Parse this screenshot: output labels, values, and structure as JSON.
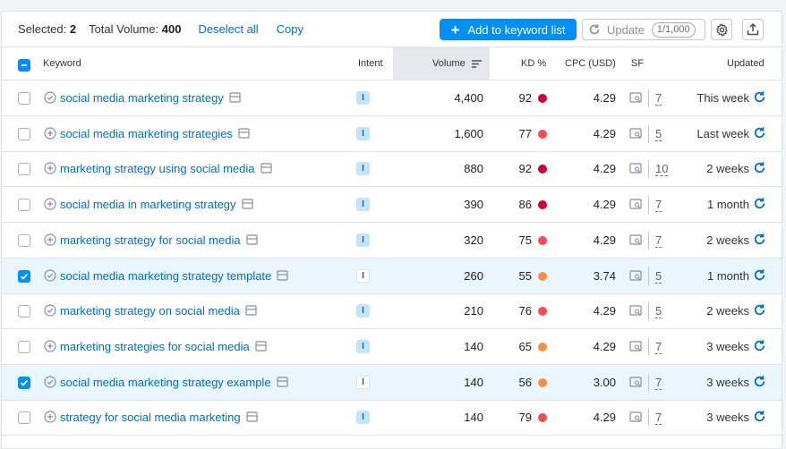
{
  "toolbar": {
    "selected_label": "Selected:",
    "selected_count": "2",
    "total_volume_label": "Total Volume:",
    "total_volume": "400",
    "deselect_label": "Deselect all",
    "copy_label": "Copy",
    "add_label": "Add to keyword list",
    "update_label": "Update",
    "update_quota": "1/1,000",
    "accent_color": "#008ff8"
  },
  "columns": {
    "keyword": "Keyword",
    "intent": "Intent",
    "volume": "Volume",
    "kd": "KD %",
    "cpc": "CPC (USD)",
    "sf": "SF",
    "updated": "Updated"
  },
  "kd_colors": {
    "very_hard": "#d1002f",
    "hard": "#ff4953",
    "difficult": "#ff8c43"
  },
  "rows": [
    {
      "keyword": "social media marketing strategy",
      "intent": "I",
      "volume": "4,400",
      "kd": "92",
      "kd_level": "very_hard",
      "cpc": "4.29",
      "sf": "7",
      "updated": "This week",
      "checked": false,
      "icon": "check"
    },
    {
      "keyword": "social media marketing strategies",
      "intent": "I",
      "volume": "1,600",
      "kd": "77",
      "kd_level": "hard",
      "cpc": "4.29",
      "sf": "5",
      "updated": "Last week",
      "checked": false,
      "icon": "plus"
    },
    {
      "keyword": "marketing strategy using social media",
      "intent": "I",
      "volume": "880",
      "kd": "92",
      "kd_level": "very_hard",
      "cpc": "4.29",
      "sf": "10",
      "updated": "2 weeks",
      "checked": false,
      "icon": "plus"
    },
    {
      "keyword": "social media in marketing strategy",
      "intent": "I",
      "volume": "390",
      "kd": "86",
      "kd_level": "very_hard",
      "cpc": "4.29",
      "sf": "7",
      "updated": "1 month",
      "checked": false,
      "icon": "plus"
    },
    {
      "keyword": "marketing strategy for social media",
      "intent": "I",
      "volume": "320",
      "kd": "75",
      "kd_level": "hard",
      "cpc": "4.29",
      "sf": "7",
      "updated": "2 weeks",
      "checked": false,
      "icon": "plus"
    },
    {
      "keyword": "social media marketing strategy template",
      "intent": "I",
      "volume": "260",
      "kd": "55",
      "kd_level": "difficult",
      "cpc": "3.74",
      "sf": "5",
      "updated": "1 month",
      "checked": true,
      "icon": "check"
    },
    {
      "keyword": "marketing strategy on social media",
      "intent": "I",
      "volume": "210",
      "kd": "76",
      "kd_level": "hard",
      "cpc": "4.29",
      "sf": "5",
      "updated": "2 weeks",
      "checked": false,
      "icon": "check"
    },
    {
      "keyword": "marketing strategies for social media",
      "intent": "I",
      "volume": "140",
      "kd": "65",
      "kd_level": "difficult",
      "cpc": "4.29",
      "sf": "7",
      "updated": "3 weeks",
      "checked": false,
      "icon": "plus"
    },
    {
      "keyword": "social media marketing strategy example",
      "intent": "I",
      "volume": "140",
      "kd": "56",
      "kd_level": "difficult",
      "cpc": "3.00",
      "sf": "7",
      "updated": "3 weeks",
      "checked": true,
      "icon": "check"
    },
    {
      "keyword": "strategy for social media marketing",
      "intent": "I",
      "volume": "140",
      "kd": "79",
      "kd_level": "hard",
      "cpc": "4.29",
      "sf": "7",
      "updated": "3 weeks",
      "checked": false,
      "icon": "plus"
    }
  ]
}
